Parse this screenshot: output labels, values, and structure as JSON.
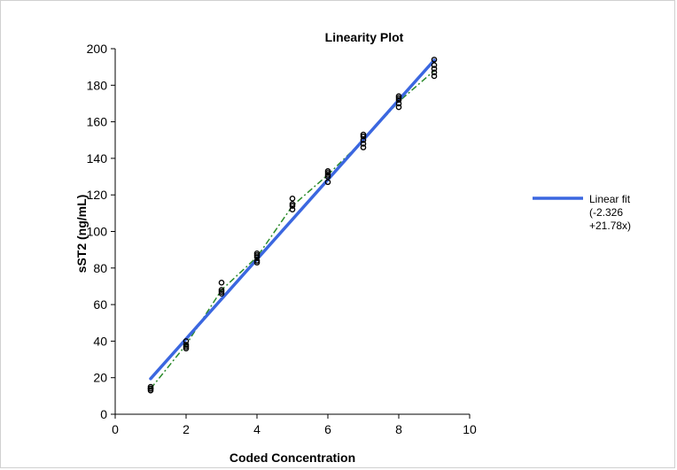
{
  "chart_data": {
    "type": "scatter",
    "title": "Linearity Plot",
    "xlabel": "Coded Concentration",
    "ylabel": "sST2 (ng/mL)",
    "xlim": [
      0,
      10
    ],
    "ylim": [
      0,
      200
    ],
    "x_ticks": [
      0,
      2,
      4,
      6,
      8,
      10
    ],
    "y_ticks": [
      0,
      20,
      40,
      60,
      80,
      100,
      120,
      140,
      160,
      180,
      200
    ],
    "grid": false,
    "legend_position": "right",
    "series": [
      {
        "kind": "points",
        "marker": "open-circle",
        "color": "#000000",
        "points": [
          [
            1,
            13
          ],
          [
            1,
            14
          ],
          [
            1,
            15
          ],
          [
            1,
            14
          ],
          [
            2,
            36
          ],
          [
            2,
            37
          ],
          [
            2,
            38
          ],
          [
            2,
            40
          ],
          [
            3,
            66
          ],
          [
            3,
            67
          ],
          [
            3,
            68
          ],
          [
            3,
            72
          ],
          [
            4,
            83
          ],
          [
            4,
            84
          ],
          [
            4,
            86
          ],
          [
            4,
            87
          ],
          [
            4,
            88
          ],
          [
            5,
            112
          ],
          [
            5,
            114
          ],
          [
            5,
            115
          ],
          [
            5,
            118
          ],
          [
            6,
            127
          ],
          [
            6,
            130
          ],
          [
            6,
            131
          ],
          [
            6,
            132
          ],
          [
            6,
            133
          ],
          [
            7,
            146
          ],
          [
            7,
            148
          ],
          [
            7,
            150
          ],
          [
            7,
            152
          ],
          [
            7,
            153
          ],
          [
            8,
            168
          ],
          [
            8,
            170
          ],
          [
            8,
            172
          ],
          [
            8,
            173
          ],
          [
            8,
            174
          ],
          [
            9,
            185
          ],
          [
            9,
            187
          ],
          [
            9,
            189
          ],
          [
            9,
            191
          ],
          [
            9,
            194
          ]
        ]
      },
      {
        "name": "Linear fit (-2.326 +21.78x)",
        "kind": "line",
        "color": "#3b67e0",
        "intercept": -2.326,
        "slope": 21.78,
        "x_range": [
          1,
          9
        ]
      },
      {
        "kind": "dashdot-line",
        "color": "#2a8a2a",
        "points": [
          [
            1,
            14
          ],
          [
            2,
            38
          ],
          [
            3,
            68
          ],
          [
            4,
            86
          ],
          [
            5,
            114
          ],
          [
            6,
            131
          ],
          [
            7,
            150
          ],
          [
            8,
            171
          ],
          [
            9,
            188
          ]
        ]
      }
    ],
    "legend": {
      "entries": [
        {
          "lines": [
            "Linear fit",
            "(-2.326",
            "+21.78x)"
          ],
          "color": "#3b67e0"
        }
      ]
    }
  }
}
